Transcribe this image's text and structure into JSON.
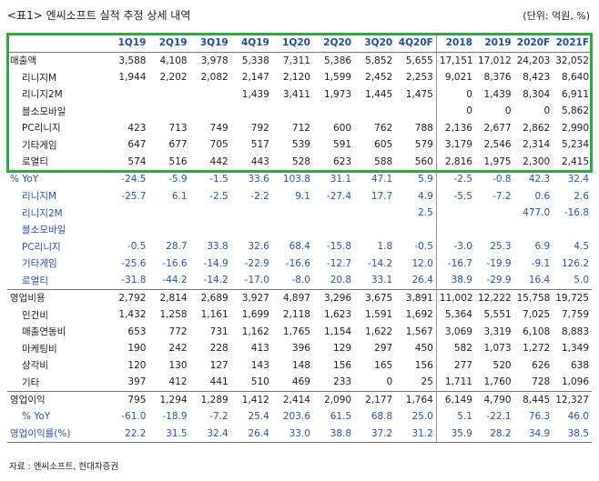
{
  "header": {
    "title": "<표1> 엔씨소프트 실적 추정 상세 내역",
    "unit": "(단위: 억원, %)"
  },
  "table": {
    "columns": [
      "1Q19",
      "2Q19",
      "3Q19",
      "4Q19",
      "1Q20",
      "2Q20",
      "3Q20",
      "4Q20F",
      "2018",
      "2019",
      "2020F",
      "2021F"
    ],
    "rows": [
      {
        "label": "매출액",
        "values": [
          "3,588",
          "4,108",
          "3,978",
          "5,338",
          "7,311",
          "5,386",
          "5,852",
          "5,655",
          "17,151",
          "17,012",
          "24,203",
          "32,052"
        ]
      },
      {
        "label": "리니지M",
        "values": [
          "1,944",
          "2,202",
          "2,082",
          "2,147",
          "2,120",
          "1,599",
          "2,452",
          "2,253",
          "9,021",
          "8,376",
          "8,423",
          "8,640"
        ]
      },
      {
        "label": "리니지2M",
        "values": [
          null,
          null,
          null,
          "1,439",
          "3,411",
          "1,973",
          "1,445",
          "1,475",
          "0",
          "1,439",
          "8,304",
          "6,911"
        ]
      },
      {
        "label": "블소모바일",
        "values": [
          null,
          null,
          null,
          null,
          null,
          null,
          null,
          null,
          "0",
          "0",
          "0",
          "5,862"
        ]
      },
      {
        "label": "PC리니지",
        "values": [
          "423",
          "713",
          "749",
          "792",
          "712",
          "600",
          "762",
          "788",
          "2,136",
          "2,677",
          "2,862",
          "2,990"
        ]
      },
      {
        "label": "기타게임",
        "values": [
          "647",
          "677",
          "705",
          "517",
          "539",
          "591",
          "605",
          "579",
          "3,179",
          "2,546",
          "2,314",
          "5,234"
        ]
      },
      {
        "label": "로열티",
        "values": [
          "574",
          "516",
          "442",
          "443",
          "528",
          "623",
          "588",
          "560",
          "2,816",
          "1,975",
          "2,300",
          "2,415"
        ]
      },
      {
        "label": "% YoY",
        "values": [
          "-24.5",
          "-5.9",
          "-1.5",
          "33.6",
          "103.8",
          "31.1",
          "47.1",
          "5.9",
          "-2.5",
          "-0.8",
          "42.3",
          "32.4"
        ]
      },
      {
        "label": "리니지M",
        "values": [
          "-25.7",
          "6.1",
          "-2.5",
          "-2.2",
          "9.1",
          "-27.4",
          "17.7",
          "4.9",
          "-5.5",
          "-7.2",
          "0.6",
          "2.6"
        ]
      },
      {
        "label": "리니지2M",
        "values": [
          null,
          null,
          null,
          null,
          null,
          null,
          null,
          "2.5",
          null,
          null,
          "477.0",
          "-16.8"
        ]
      },
      {
        "label": "블소모바일",
        "values": [
          null,
          null,
          null,
          null,
          null,
          null,
          null,
          null,
          null,
          null,
          null,
          null
        ]
      },
      {
        "label": "PC리니지",
        "values": [
          "-0.5",
          "28.7",
          "33.8",
          "32.6",
          "68.4",
          "-15.8",
          "1.8",
          "-0.5",
          "-3.0",
          "25.3",
          "6.9",
          "4.5"
        ]
      },
      {
        "label": "기타게임",
        "values": [
          "-25.6",
          "-16.6",
          "-14.9",
          "-22.9",
          "-16.6",
          "-12.7",
          "-14.2",
          "12.0",
          "-16.7",
          "-19.9",
          "-9.1",
          "126.2"
        ]
      },
      {
        "label": "로열티",
        "values": [
          "-31.8",
          "-44.2",
          "-14.2",
          "-17.0",
          "-8.0",
          "20.8",
          "33.1",
          "26.4",
          "38.9",
          "-29.9",
          "16.4",
          "5.0"
        ]
      },
      {
        "label": "영업비용",
        "values": [
          "2,792",
          "2,814",
          "2,689",
          "3,927",
          "4,897",
          "3,296",
          "3,675",
          "3,891",
          "11,002",
          "12,222",
          "15,758",
          "19,725"
        ]
      },
      {
        "label": "인건비",
        "values": [
          "1,432",
          "1,258",
          "1,161",
          "1,699",
          "2,118",
          "1,623",
          "1,591",
          "1,692",
          "5,364",
          "5,551",
          "7,025",
          "7,759"
        ]
      },
      {
        "label": "매출연동비",
        "values": [
          "653",
          "772",
          "731",
          "1,162",
          "1,765",
          "1,154",
          "1,622",
          "1,567",
          "3,069",
          "3,319",
          "6,108",
          "8,883"
        ]
      },
      {
        "label": "마케팅비",
        "values": [
          "190",
          "242",
          "228",
          "413",
          "396",
          "129",
          "297",
          "450",
          "582",
          "1,073",
          "1,272",
          "1,349"
        ]
      },
      {
        "label": "상각비",
        "values": [
          "120",
          "130",
          "127",
          "143",
          "148",
          "156",
          "165",
          "156",
          "277",
          "520",
          "626",
          "638"
        ]
      },
      {
        "label": "기타",
        "values": [
          "397",
          "412",
          "441",
          "510",
          "469",
          "233",
          "0",
          "25",
          "1,711",
          "1,760",
          "728",
          "1,096"
        ]
      },
      {
        "label": "영업이익",
        "values": [
          "795",
          "1,294",
          "1,289",
          "1,412",
          "2,414",
          "2,090",
          "2,177",
          "1,764",
          "6,149",
          "4,790",
          "8,445",
          "12,327"
        ]
      },
      {
        "label": "% YoY",
        "values": [
          "-61.0",
          "-18.9",
          "-7.2",
          "25.4",
          "203.6",
          "61.5",
          "68.8",
          "25.0",
          "5.1",
          "-22.1",
          "76.3",
          "46.0"
        ]
      },
      {
        "label": "영업이익률(%)",
        "values": [
          "22.2",
          "31.5",
          "32.4",
          "26.4",
          "33.0",
          "38.8",
          "37.2",
          "31.2",
          "35.9",
          "28.2",
          "34.9",
          "38.5"
        ]
      }
    ]
  },
  "source": "자료 : 엔씨소프트, 현대차증권"
}
